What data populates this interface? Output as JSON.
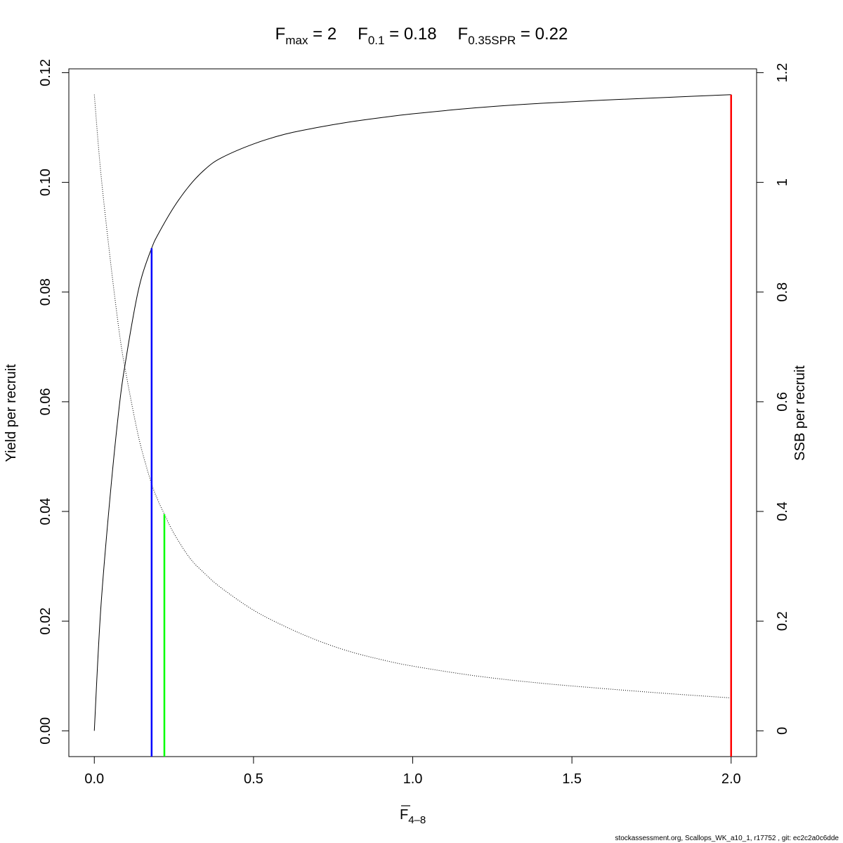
{
  "chart_data": {
    "type": "line",
    "title": {
      "fmax_sym": "F",
      "fmax_sub": "max",
      "fmax_eq": " = 2",
      "f01_sym": "F",
      "f01_sub": "0.1",
      "f01_eq": " = 0.18",
      "fspr_sym": "F",
      "fspr_sub": "0.35SPR",
      "fspr_eq": " = 0.22"
    },
    "xlabel": {
      "sym": "F",
      "sub": "4–8"
    },
    "ylabel_left": "Yield per recruit",
    "ylabel_right": "SSB per recruit",
    "xlim": [
      -0.08,
      2.08
    ],
    "ylim_left": [
      -0.0047,
      0.1207
    ],
    "ylim_right": [
      -0.047,
      1.207
    ],
    "xticks": [
      0,
      0.5,
      1,
      1.5,
      2
    ],
    "xtick_labels": [
      "0.0",
      "0.5",
      "1.0",
      "1.5",
      "2.0"
    ],
    "yticks_left": [
      0,
      0.02,
      0.04,
      0.06,
      0.08,
      0.1,
      0.12
    ],
    "ytick_labels_left": [
      "0.00",
      "0.02",
      "0.04",
      "0.06",
      "0.08",
      "0.10",
      "0.12"
    ],
    "yticks_right": [
      0,
      0.2,
      0.4,
      0.6,
      0.8,
      1,
      1.2
    ],
    "ytick_labels_right": [
      "0",
      "0.2",
      "0.4",
      "0.6",
      "0.8",
      "1",
      "1.2"
    ],
    "grid": false,
    "legend": "none",
    "series": [
      {
        "axis": "left",
        "style": "solid",
        "color": "#000000",
        "x": [
          0,
          0.02,
          0.05,
          0.08,
          0.1,
          0.13,
          0.15,
          0.18,
          0.2,
          0.25,
          0.3,
          0.35,
          0.4,
          0.5,
          0.6,
          0.7,
          0.8,
          0.9,
          1.0,
          1.2,
          1.4,
          1.6,
          1.8,
          2.0
        ],
        "y": [
          0,
          0.022,
          0.043,
          0.06,
          0.068,
          0.078,
          0.083,
          0.088,
          0.0905,
          0.0955,
          0.0995,
          0.1025,
          0.1045,
          0.107,
          0.1088,
          0.11,
          0.111,
          0.1118,
          0.1125,
          0.1136,
          0.1144,
          0.115,
          0.1155,
          0.116
        ]
      },
      {
        "axis": "right",
        "style": "dotted",
        "color": "#000000",
        "x": [
          0,
          0.02,
          0.05,
          0.08,
          0.1,
          0.13,
          0.15,
          0.18,
          0.2,
          0.22,
          0.25,
          0.3,
          0.35,
          0.4,
          0.5,
          0.6,
          0.7,
          0.8,
          0.9,
          1.0,
          1.2,
          1.4,
          1.6,
          1.8,
          2.0
        ],
        "y": [
          1.16,
          1.02,
          0.86,
          0.72,
          0.65,
          0.56,
          0.51,
          0.45,
          0.42,
          0.395,
          0.36,
          0.315,
          0.285,
          0.26,
          0.22,
          0.19,
          0.165,
          0.145,
          0.13,
          0.118,
          0.1,
          0.087,
          0.077,
          0.068,
          0.06
        ]
      }
    ],
    "reference_lines": [
      {
        "x": 0.18,
        "y_left": 0.088,
        "color": "#0000ff"
      },
      {
        "x": 0.22,
        "y_right": 0.395,
        "color": "#00ff00"
      },
      {
        "x": 2.0,
        "y_left": 0.116,
        "color": "#ff0000"
      }
    ]
  },
  "footer": "stockassessment.org, Scallops_WK_a10_1, r17752 , git: ec2c2a0c6dde"
}
